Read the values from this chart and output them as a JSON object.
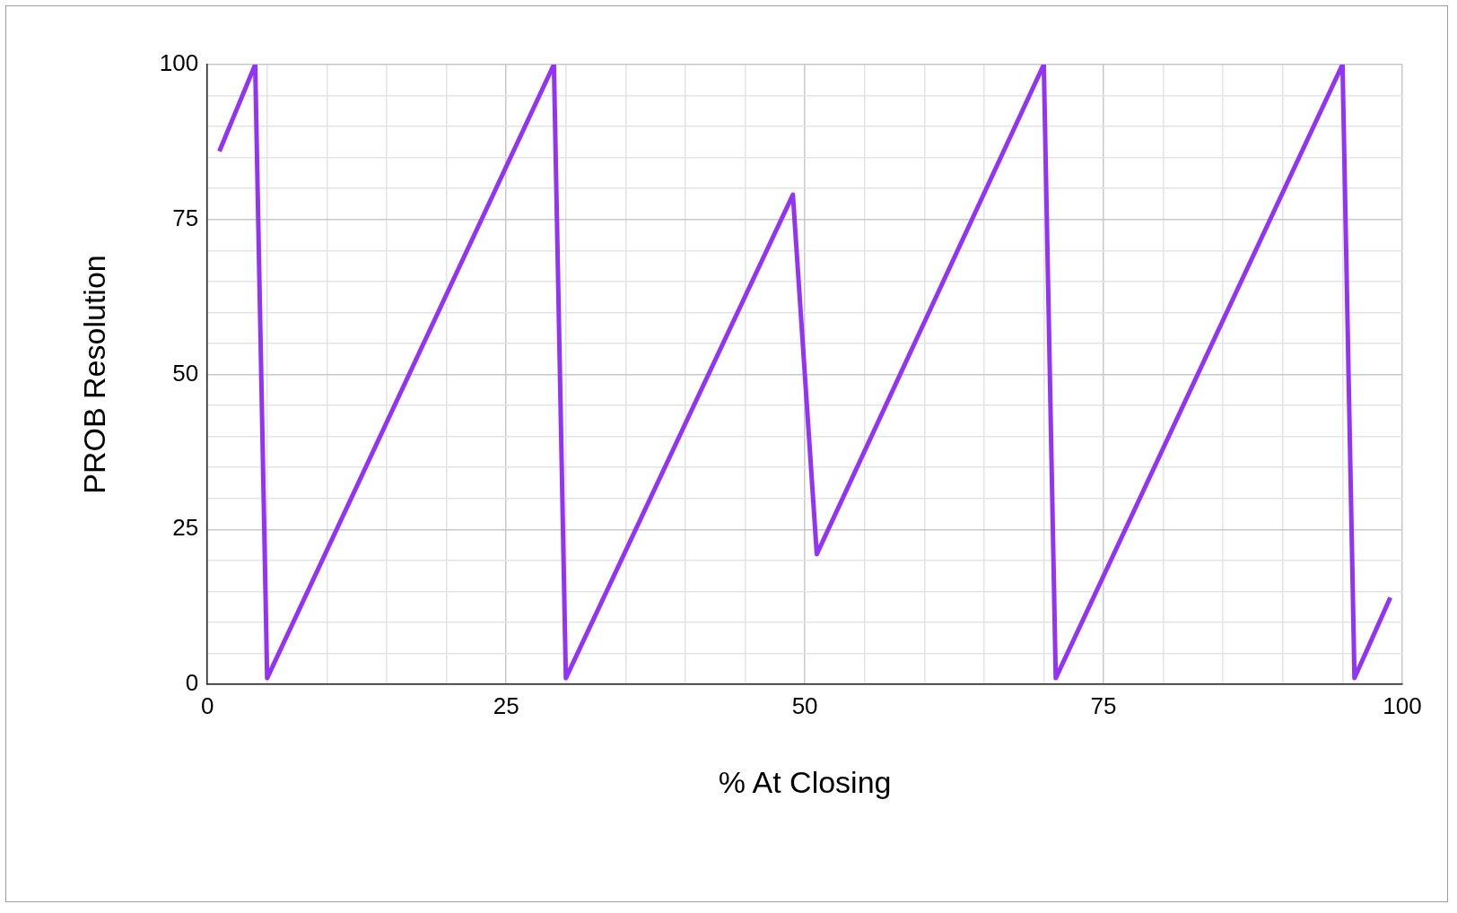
{
  "chart_data": {
    "type": "line",
    "xlabel": "% At Closing",
    "ylabel": "PROB Resolution",
    "series": [
      {
        "color": "#9333f5",
        "x": [
          1,
          4,
          5,
          29,
          30,
          49,
          51,
          70,
          71,
          95,
          96,
          99
        ],
        "values": [
          86,
          100,
          1,
          100,
          1,
          79,
          21,
          100,
          1,
          100,
          1,
          14
        ]
      }
    ],
    "xlim": [
      0,
      100
    ],
    "ylim": [
      0,
      100
    ],
    "xticks": [
      0,
      {
        "value": 5,
        "label": null
      },
      {
        "value": 10,
        "label": null
      },
      {
        "value": 15,
        "label": null
      },
      {
        "value": 20,
        "label": null
      },
      25,
      {
        "value": 30,
        "label": null
      },
      {
        "value": 35,
        "label": null
      },
      {
        "value": 40,
        "label": null
      },
      {
        "value": 45,
        "label": null
      },
      50,
      {
        "value": 55,
        "label": null
      },
      {
        "value": 60,
        "label": null
      },
      {
        "value": 65,
        "label": null
      },
      {
        "value": 70,
        "label": null
      },
      75,
      {
        "value": 80,
        "label": null
      },
      {
        "value": 85,
        "label": null
      },
      {
        "value": 90,
        "label": null
      },
      {
        "value": 95,
        "label": null
      },
      100
    ],
    "yticks": [
      0,
      {
        "value": 5,
        "label": null
      },
      {
        "value": 10,
        "label": null
      },
      {
        "value": 15,
        "label": null
      },
      {
        "value": 20,
        "label": null
      },
      25,
      {
        "value": 30,
        "label": null
      },
      {
        "value": 35,
        "label": null
      },
      {
        "value": 40,
        "label": null
      },
      {
        "value": 45,
        "label": null
      },
      50,
      {
        "value": 55,
        "label": null
      },
      {
        "value": 60,
        "label": null
      },
      {
        "value": 65,
        "label": null
      },
      {
        "value": 70,
        "label": null
      },
      75,
      {
        "value": 80,
        "label": null
      },
      {
        "value": 85,
        "label": null
      },
      {
        "value": 90,
        "label": null
      },
      {
        "value": 95,
        "label": null
      },
      100
    ],
    "grid": true,
    "legend": false,
    "marker": "none",
    "line_style": "solid"
  }
}
